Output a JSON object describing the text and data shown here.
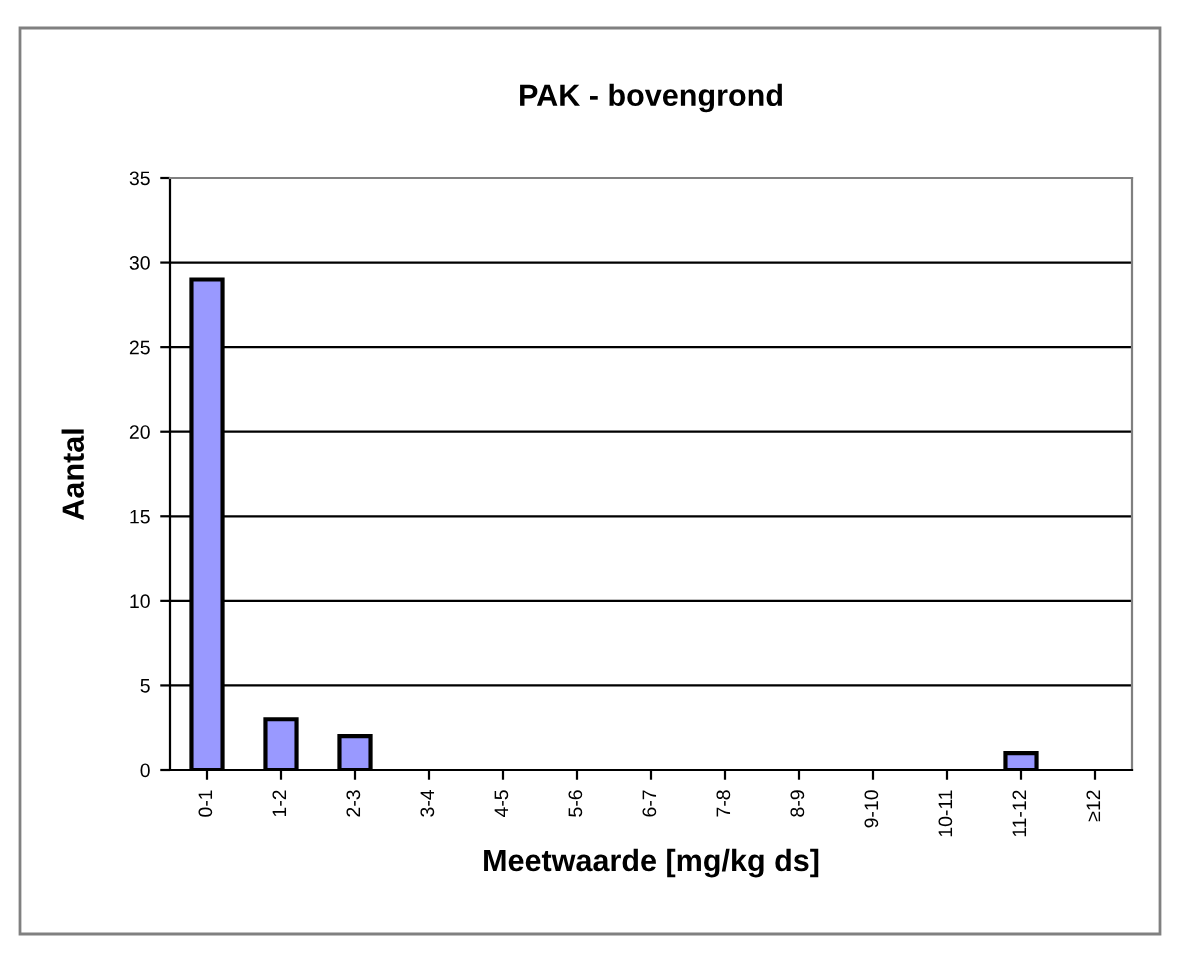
{
  "chart_data": {
    "type": "bar",
    "title": "PAK - bovengrond",
    "xlabel": "Meetwaarde [mg/kg ds]",
    "ylabel": "Aantal",
    "categories": [
      "0-1",
      "1-2",
      "2-3",
      "3-4",
      "4-5",
      "5-6",
      "6-7",
      "7-8",
      "8-9",
      "9-10",
      "10-11",
      "11-12",
      "≥12"
    ],
    "values": [
      29,
      3,
      2,
      0,
      0,
      0,
      0,
      0,
      0,
      0,
      0,
      1,
      0
    ],
    "color": "#9999ff",
    "ylim": [
      0,
      35
    ],
    "yticks": [
      0,
      5,
      10,
      15,
      20,
      25,
      30,
      35
    ],
    "grid": "y",
    "legend": false
  }
}
